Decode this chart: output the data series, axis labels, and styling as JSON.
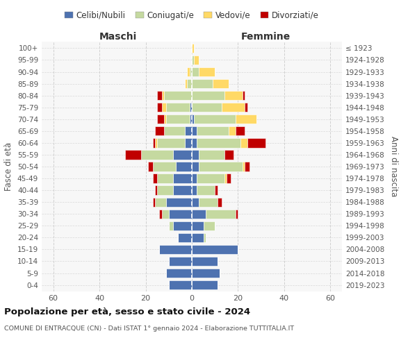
{
  "age_groups": [
    "0-4",
    "5-9",
    "10-14",
    "15-19",
    "20-24",
    "25-29",
    "30-34",
    "35-39",
    "40-44",
    "45-49",
    "50-54",
    "55-59",
    "60-64",
    "65-69",
    "70-74",
    "75-79",
    "80-84",
    "85-89",
    "90-94",
    "95-99",
    "100+"
  ],
  "birth_years": [
    "2019-2023",
    "2014-2018",
    "2009-2013",
    "2004-2008",
    "1999-2003",
    "1994-1998",
    "1989-1993",
    "1984-1988",
    "1979-1983",
    "1974-1978",
    "1969-1973",
    "1964-1968",
    "1959-1963",
    "1954-1958",
    "1949-1953",
    "1944-1948",
    "1939-1943",
    "1934-1938",
    "1929-1933",
    "1924-1928",
    "≤ 1923"
  ],
  "males": {
    "celibi": [
      10,
      11,
      10,
      14,
      6,
      8,
      10,
      11,
      8,
      8,
      7,
      8,
      3,
      3,
      1,
      1,
      0,
      0,
      0,
      0,
      0
    ],
    "coniugati": [
      0,
      0,
      0,
      0,
      0,
      2,
      3,
      5,
      7,
      7,
      10,
      14,
      12,
      9,
      10,
      10,
      12,
      2,
      1,
      0,
      0
    ],
    "vedovi": [
      0,
      0,
      0,
      0,
      0,
      0,
      0,
      0,
      0,
      0,
      0,
      0,
      1,
      0,
      1,
      2,
      1,
      1,
      1,
      0,
      0
    ],
    "divorziati": [
      0,
      0,
      0,
      0,
      0,
      0,
      1,
      1,
      1,
      2,
      2,
      7,
      1,
      4,
      3,
      2,
      2,
      0,
      0,
      0,
      0
    ]
  },
  "females": {
    "nubili": [
      11,
      12,
      11,
      20,
      5,
      5,
      6,
      3,
      2,
      2,
      3,
      3,
      2,
      2,
      1,
      0,
      0,
      0,
      0,
      0,
      0
    ],
    "coniugate": [
      0,
      0,
      0,
      0,
      1,
      5,
      13,
      8,
      8,
      12,
      19,
      11,
      19,
      14,
      18,
      13,
      14,
      9,
      3,
      1,
      0
    ],
    "vedove": [
      0,
      0,
      0,
      0,
      0,
      0,
      0,
      0,
      0,
      1,
      1,
      0,
      3,
      3,
      9,
      10,
      8,
      7,
      7,
      2,
      1
    ],
    "divorziate": [
      0,
      0,
      0,
      0,
      0,
      0,
      1,
      2,
      1,
      2,
      2,
      4,
      8,
      4,
      0,
      1,
      1,
      0,
      0,
      0,
      0
    ]
  },
  "colors": {
    "celibi_nubili": "#4e72b0",
    "coniugati": "#c5d9a0",
    "vedovi": "#ffd966",
    "divorziati": "#c00000"
  },
  "title": "Popolazione per età, sesso e stato civile - 2024",
  "subtitle": "COMUNE DI ENTRACQUE (CN) - Dati ISTAT 1° gennaio 2024 - Elaborazione TUTTITALIA.IT",
  "xlabel_left": "Maschi",
  "xlabel_right": "Femmine",
  "ylabel_left": "Fasce di età",
  "ylabel_right": "Anni di nascita",
  "xlim": 65,
  "background_color": "#ffffff",
  "grid_color": "#cccccc"
}
